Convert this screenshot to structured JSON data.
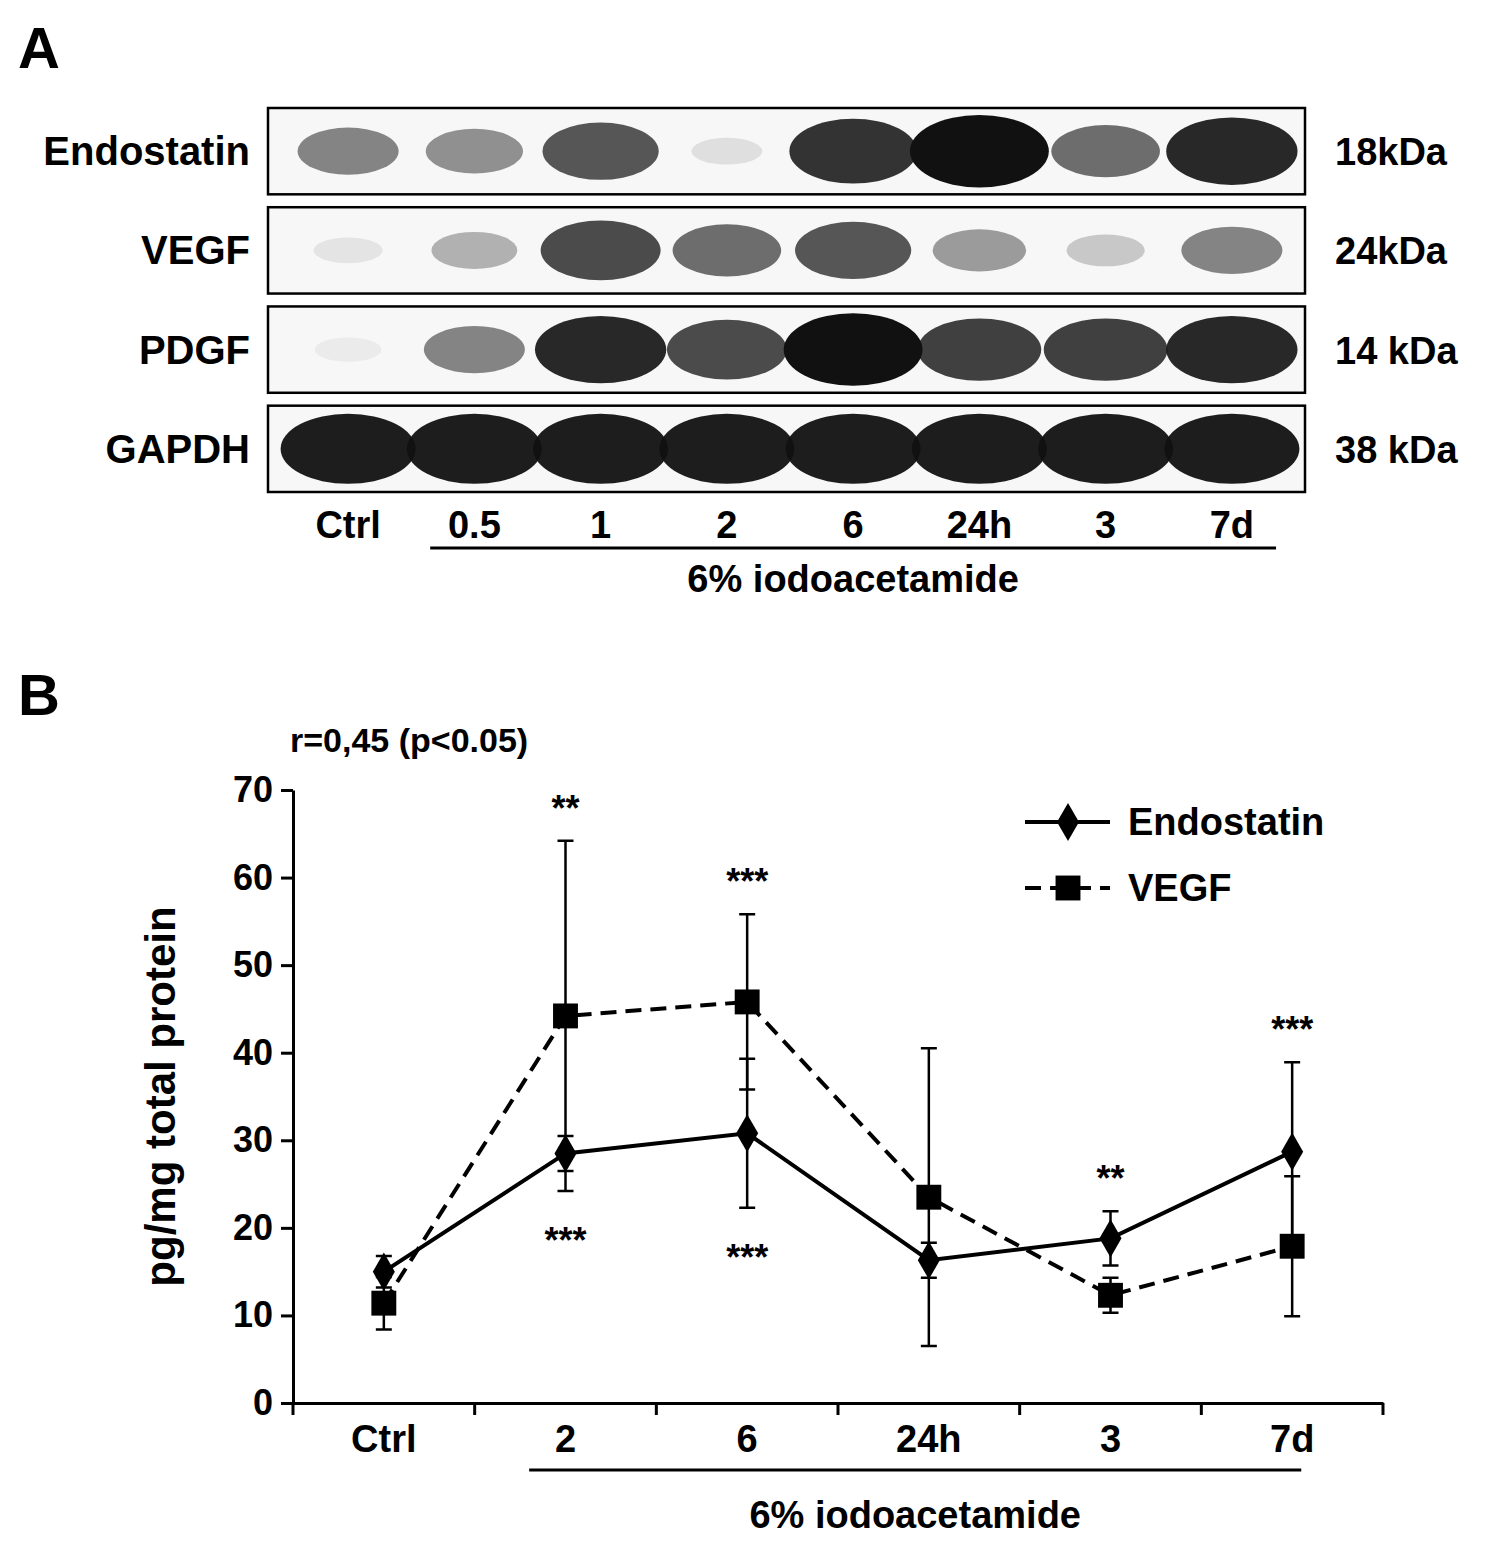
{
  "chart_data": [
    {
      "type": "blot",
      "title": "A",
      "categories": [
        "Ctrl",
        "0.5",
        "1",
        "2",
        "6",
        "24h",
        "3",
        "7d"
      ],
      "group_label": "6% iodoacetamide",
      "rows": [
        {
          "name": "Endostatin",
          "size": "18kDa",
          "values": [
            0.5,
            0.45,
            0.7,
            0.1,
            0.85,
            1.0,
            0.6,
            0.9
          ]
        },
        {
          "name": "VEGF",
          "size": "24kDa",
          "values": [
            0.08,
            0.3,
            0.75,
            0.6,
            0.7,
            0.4,
            0.2,
            0.5
          ]
        },
        {
          "name": "PDGF",
          "size": "14 kDa",
          "values": [
            0.05,
            0.5,
            0.9,
            0.75,
            1.0,
            0.8,
            0.8,
            0.9
          ]
        },
        {
          "name": "GAPDH",
          "size": "38 kDa",
          "values": [
            0.95,
            0.95,
            0.95,
            0.95,
            0.95,
            0.95,
            0.95,
            0.95
          ]
        }
      ]
    },
    {
      "type": "line",
      "title": "B",
      "annotation": "r=0,45 (p<0.05)",
      "y_label": "pg/mg total protein",
      "categories": [
        "Ctrl",
        "2",
        "6",
        "24h",
        "3",
        "7d"
      ],
      "group_label": "6% iodoacetamide",
      "ylim": [
        0,
        70
      ],
      "yticks": [
        0,
        10,
        20,
        30,
        40,
        50,
        60,
        70
      ],
      "legend": "top-right",
      "series": [
        {
          "name": "Endostatin",
          "color": "#000000",
          "marker": "diamond",
          "line_style": "solid",
          "values": [
            15,
            28.5,
            30.8,
            16.3,
            18.8,
            28.7
          ],
          "errors": [
            1.8,
            2,
            8.5,
            2,
            3.1,
            10.2
          ]
        },
        {
          "name": "VEGF",
          "color": "#000000",
          "marker": "square",
          "line_style": "dashed",
          "values": [
            11.4,
            44.2,
            45.8,
            23.5,
            12.3,
            17.9
          ],
          "errors": [
            3,
            20,
            10,
            17,
            2,
            8
          ]
        }
      ],
      "significance": {
        "above": [
          null,
          "**",
          "***",
          null,
          "**",
          "***"
        ],
        "below": [
          null,
          "***",
          "***",
          null,
          null,
          null
        ]
      }
    }
  ]
}
